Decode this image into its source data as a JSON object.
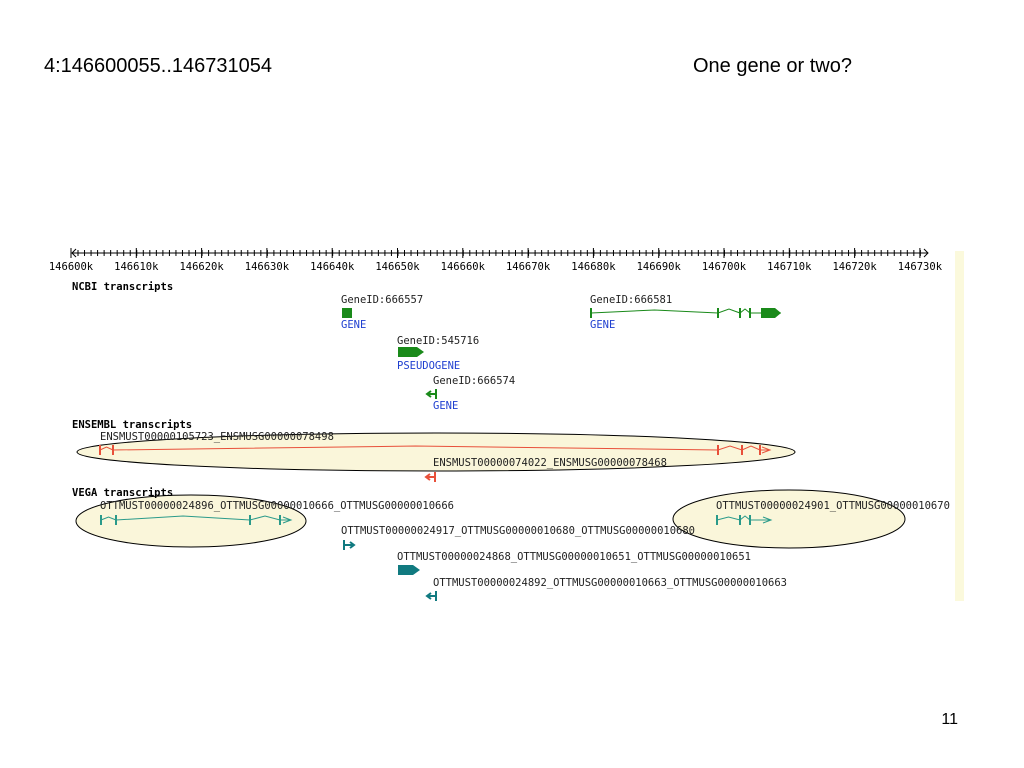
{
  "header": {
    "location": "4:146600055..146731054",
    "question": "One gene or two?"
  },
  "browser": {
    "ruler": [
      "146600k",
      "146610k",
      "146620k",
      "146630k",
      "146640k",
      "146650k",
      "146660k",
      "146670k",
      "146680k",
      "146690k",
      "146700k",
      "146710k",
      "146720k",
      "146730k"
    ],
    "tracks": [
      {
        "title": "NCBI transcripts",
        "features": [
          {
            "name": "GeneID:666557",
            "type": "GENE"
          },
          {
            "name": "GeneID:666581",
            "type": "GENE"
          },
          {
            "name": "GeneID:545716",
            "type": "PSEUDOGENE"
          },
          {
            "name": "GeneID:666574",
            "type": "GENE"
          }
        ]
      },
      {
        "title": "ENSEMBL transcripts",
        "features": [
          {
            "name": "ENSMUST00000105723_ENSMUSG00000078498"
          },
          {
            "name": "ENSMUST00000074022_ENSMUSG00000078468"
          }
        ]
      },
      {
        "title": "VEGA transcripts",
        "features": [
          {
            "name": "OTTMUST00000024896_OTTMUSG00000010666_OTTMUSG00000010666"
          },
          {
            "name": "OTTMUST00000024901_OTTMUSG00000010670"
          },
          {
            "name": "OTTMUST00000024917_OTTMUSG00000010680_OTTMUSG00000010680"
          },
          {
            "name": "OTTMUST00000024868_OTTMUSG00000010651_OTTMUSG00000010651"
          },
          {
            "name": "OTTMUST00000024892_OTTMUSG00000010663_OTTMUSG00000010663"
          }
        ]
      }
    ]
  },
  "footer": {
    "page_number": "11"
  }
}
